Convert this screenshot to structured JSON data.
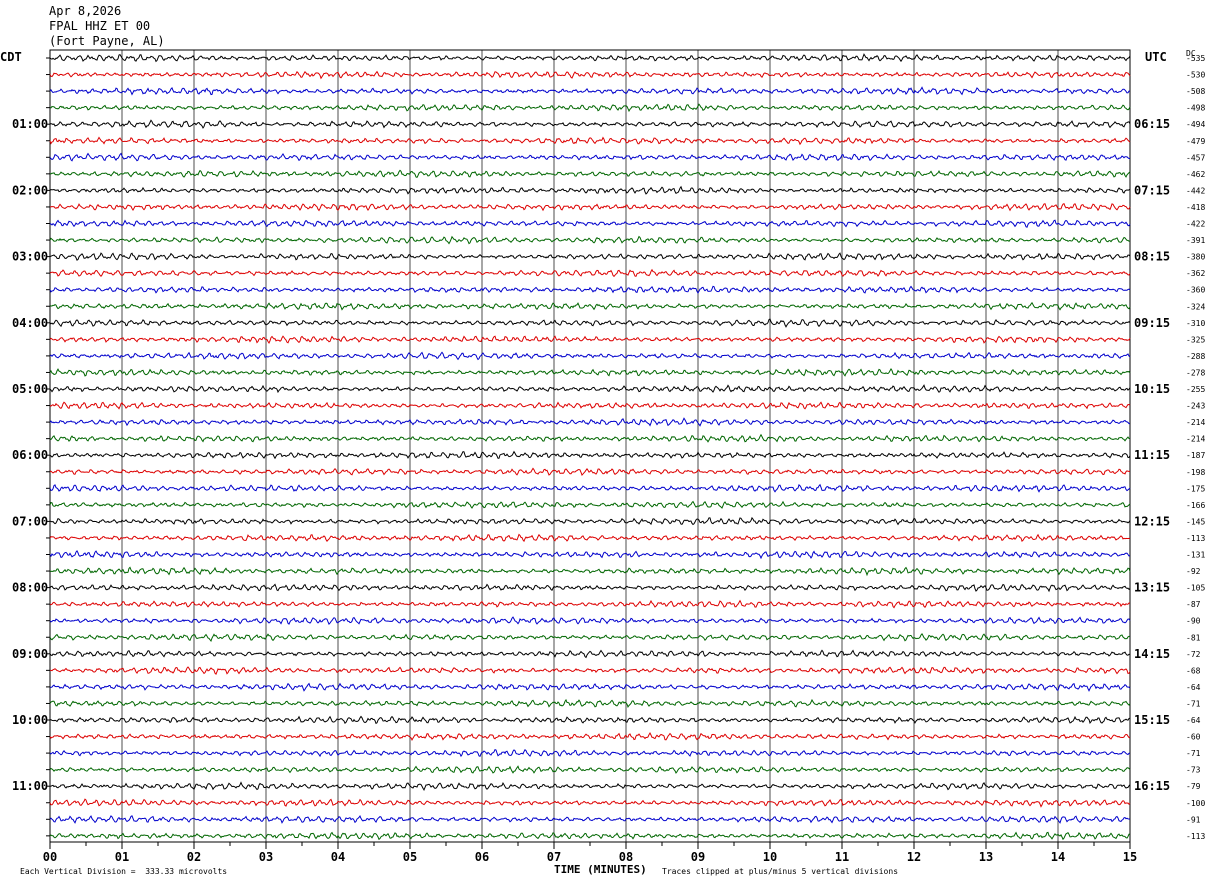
{
  "header": {
    "date": "Apr 8,2026",
    "station": "FPAL HHZ ET 00",
    "location": "(Fort Payne, AL)"
  },
  "left_tz": "CDT",
  "right_tz": "UTC",
  "dc_header": "DC",
  "footer": {
    "vertical_division": "Each Vertical Division =  333.33 microvolts",
    "xlabel": "TIME (MINUTES)",
    "clip_note": "Traces clipped at plus/minus 5 vertical divisions"
  },
  "chart_data": {
    "type": "line",
    "title": "FPAL HHZ ET 00",
    "xlabel": "TIME (MINUTES)",
    "xlim": [
      0,
      15
    ],
    "x_ticks": [
      "00",
      "01",
      "02",
      "03",
      "04",
      "05",
      "06",
      "07",
      "08",
      "09",
      "10",
      "11",
      "12",
      "13",
      "14",
      "15"
    ],
    "left_hour_labels": [
      "01:00",
      "02:00",
      "03:00",
      "04:00",
      "05:00",
      "06:00",
      "07:00",
      "08:00",
      "09:00",
      "10:00",
      "11:00"
    ],
    "right_hour_labels": [
      "06:15",
      "07:15",
      "08:15",
      "09:15",
      "10:15",
      "11:15",
      "12:15",
      "13:15",
      "14:15",
      "15:15",
      "16:15"
    ],
    "trace_colors": [
      "#000000",
      "#dd0000",
      "#0000cc",
      "#006600"
    ],
    "dc_offsets": [
      "-535",
      "-530",
      "-508",
      "-498",
      "-494",
      "-479",
      "-457",
      "-462",
      "-442",
      "-418",
      "-422",
      "-391",
      "-380",
      "-362",
      "-360",
      "-324",
      "-310",
      "-325",
      "-288",
      "-278",
      "-255",
      "-243",
      "-214",
      "-214",
      "-187",
      "-198",
      "-175",
      "-166",
      "-145",
      "-113",
      "-131",
      "-92",
      "-105",
      "-87",
      "-90",
      "-81",
      "-72",
      "-68",
      "-64",
      "-71",
      "-64",
      "-60",
      "-71",
      "-73",
      "-79",
      "-100",
      "-91",
      "-113"
    ]
  }
}
